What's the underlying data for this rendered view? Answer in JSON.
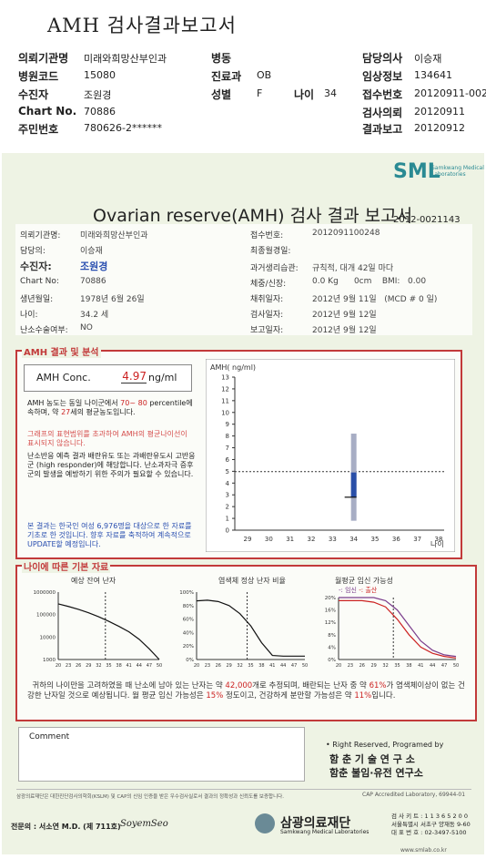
{
  "header": {
    "title": "AMH 검사결과보고서",
    "fields": [
      {
        "label": "의뢰기관명",
        "value": "미래와희망산부인과"
      },
      {
        "label": "병원코드",
        "value": "15080"
      },
      {
        "label": "수진자",
        "value": "조원경"
      },
      {
        "label": "Chart No.",
        "value": "70886"
      },
      {
        "label": "주민번호",
        "value": "780626-2******"
      },
      {
        "label": "병동",
        "value": ""
      },
      {
        "label": "진료과",
        "value": "OB"
      },
      {
        "label": "성별",
        "value": "F"
      },
      {
        "label": "나이",
        "value": "34"
      },
      {
        "label": "담당의사",
        "value": "이승재"
      },
      {
        "label": "임상정보",
        "value": "134641"
      },
      {
        "label": "접수번호",
        "value": "20120911-00248"
      },
      {
        "label": "검사의뢰",
        "value": "20120911"
      },
      {
        "label": "결과보고",
        "value": "20120912"
      }
    ]
  },
  "report": {
    "logo": "SML",
    "logo_sub": "Samkwang Medical Laboratories",
    "title": "Ovarian reserve(AMH) 검사 결과 보고서",
    "number": "2012-0021143",
    "left_info": [
      {
        "label": "의뢰기관명:",
        "value": "미래와희망산부인과"
      },
      {
        "label": "담당의:",
        "value": "이승재"
      },
      {
        "label": "수진자:",
        "value": "조원경"
      },
      {
        "label": "Chart No:",
        "value": "70886"
      },
      {
        "label": "생년월일:",
        "value": "1978년 6월 26일"
      },
      {
        "label": "나이:",
        "value": "34.2 세"
      },
      {
        "label": "난소수술여부:",
        "value": "NO"
      }
    ],
    "right_info": [
      {
        "label": "접수번호:",
        "value": "2012091100248"
      },
      {
        "label": "최종월경일:",
        "value": ""
      },
      {
        "label": "과거생리습관:",
        "value": "규칙적, 대개   42일 마다"
      },
      {
        "label": "체중/신장:",
        "value": "0.0 Kg      0cm    BMI:   0.00"
      },
      {
        "label": "채취일자:",
        "value": "2012년 9월 11일   (MCD # 0 일)"
      },
      {
        "label": "검사일자:",
        "value": "2012년 9월 12일"
      },
      {
        "label": "보고일자:",
        "value": "2012년 9월 12일"
      }
    ],
    "amh_section_title": "AMH 결과 및 분석",
    "amh_label": "AMH Conc.",
    "amh_value": "4.97",
    "amh_unit": "ng/ml",
    "analysis_1a": "AMH 농도는 동일 나이군에서",
    "analysis_1b": "70~ 80",
    "analysis_1c": "percentile에 속하며, 약",
    "analysis_1d": "27",
    "analysis_1e": "세의 평균농도입니다.",
    "analysis_2": "그래프의 표현범위를 초과하여 AMH의 평균나이선이 표시되지 않습니다.",
    "analysis_3": "난소반응 예측 결과 배란유도 또는 과배란유도시 고반응군 (high responder)에 해당합니다. 난소과자극 증후군의 발생을 예방하기 위한 주의가 필요할 수 있습니다.",
    "analysis_4": "본 결과는 한국인 여성 6,976명을 대상으로 한 자료를 기초로 한 것입니다. 향후 자료를 축적하여 계속적으로 UPDATE할 예정입니다.",
    "basic_section_title": "나이에 따른 기본 자료",
    "mini1_title": "예상 잔여 난자",
    "mini2_title": "염색체 정상 난자 비율",
    "mini3_title": "월평균 임신 가능성",
    "mini3_legend_a": "-: 임신",
    "mini3_legend_b": "-: 출산",
    "summary_a": "귀하의 나이만을 고려하였을 때 난소에 남아 있는 난자는 약",
    "summary_b": "42,000",
    "summary_c": "개로 추정되며, 배란되는 난자 중 약",
    "summary_d": "61%",
    "summary_e": "가 염색체이상이 없는 건강한 난자일 것으로 예상됩니다. 월 평균 임신 가능성은",
    "summary_f": "15%",
    "summary_g": "정도이고, 건강하게 분만할 가능성은 약",
    "summary_h": "11%",
    "summary_i": "입니다.",
    "comment_label": "Comment",
    "rights": "• Right Reserved, Programed by",
    "inst1": "함 춘  기 술  연 구 소",
    "inst2": "함춘 불임·유전 연구소",
    "footer_note": "삼광의료재단은 대한진단검사의학회(KSLM) 및 CAP의 신임 인증을 받은 우수검사실로서 결과의 정확성과 신뢰도를 보증합니다.",
    "cap": "CAP Accredited Laboratory, 69944-01",
    "specialist": "전문의 : 서소연 M.D. (제 711호)",
    "signature": "SoyemSeo",
    "foundation": "삼광의료재단",
    "foundation_sub": "Samkwang Medical Laboratories",
    "contact1": "검 사 키 트 : 1 1 3 6 5 2 0 0",
    "contact2": "서울특별시 서초구 양재동 9-60",
    "contact3": "대 표 번 호 : 02-3497-5100",
    "website": "www.smlab.co.kr"
  },
  "chart_data": [
    {
      "type": "bar",
      "title": "",
      "ylabel": "AMH( ng/ml)",
      "xlabel": "나이",
      "x": [
        29,
        30,
        31,
        32,
        33,
        34,
        35,
        36,
        37,
        38
      ],
      "ylim": [
        0,
        13
      ],
      "yticks": [
        0,
        1,
        2,
        3,
        4,
        5,
        6,
        7,
        8,
        9,
        10,
        11,
        12,
        13
      ],
      "reference_line": 4.97,
      "range_bar": {
        "x": 34,
        "low": 0.8,
        "high": 8.2
      },
      "iqr_bar": {
        "x": 34,
        "low": 2.8,
        "high": 4.9
      },
      "marker": {
        "x": 34,
        "value": 2.8
      }
    },
    {
      "type": "line",
      "title": "예상 잔여 난자",
      "scale": "log",
      "yticks": [
        "1000000",
        "100000",
        "10000",
        "1000"
      ],
      "xticks": [
        20,
        23,
        26,
        29,
        32,
        35,
        38,
        41,
        44,
        47,
        50
      ],
      "x": [
        20,
        23,
        26,
        29,
        32,
        35,
        38,
        41,
        44,
        47,
        50
      ],
      "y": [
        300000,
        230000,
        170000,
        120000,
        80000,
        50000,
        30000,
        17000,
        8000,
        3000,
        1000
      ],
      "marker_x": 34
    },
    {
      "type": "line",
      "title": "염색체 정상 난자 비율",
      "yticks": [
        "100%",
        "80%",
        "60%",
        "40%",
        "20%",
        "0%"
      ],
      "xticks": [
        20,
        23,
        26,
        29,
        32,
        35,
        38,
        41,
        44,
        47,
        50
      ],
      "x": [
        20,
        23,
        26,
        29,
        32,
        35,
        38,
        41,
        44,
        47,
        50
      ],
      "y": [
        87,
        88,
        86,
        80,
        68,
        50,
        25,
        6,
        5,
        5,
        5
      ],
      "marker_x": 34
    },
    {
      "type": "line",
      "title": "월평균 임신 가능성",
      "yticks": [
        "20%",
        "16%",
        "12%",
        "8%",
        "4%",
        "0%"
      ],
      "xticks": [
        20,
        23,
        26,
        29,
        32,
        35,
        38,
        41,
        44,
        47,
        50
      ],
      "series": [
        {
          "name": "임신",
          "x": [
            20,
            23,
            26,
            29,
            32,
            35,
            38,
            41,
            44,
            47,
            50
          ],
          "y": [
            20,
            20,
            20,
            20,
            19,
            16,
            11,
            6,
            3,
            1.5,
            1
          ]
        },
        {
          "name": "출산",
          "x": [
            20,
            23,
            26,
            29,
            32,
            35,
            38,
            41,
            44,
            47,
            50
          ],
          "y": [
            19,
            19,
            19,
            18.5,
            17,
            13,
            8,
            4,
            2,
            1,
            0.5
          ]
        }
      ],
      "marker_x": 34
    }
  ]
}
